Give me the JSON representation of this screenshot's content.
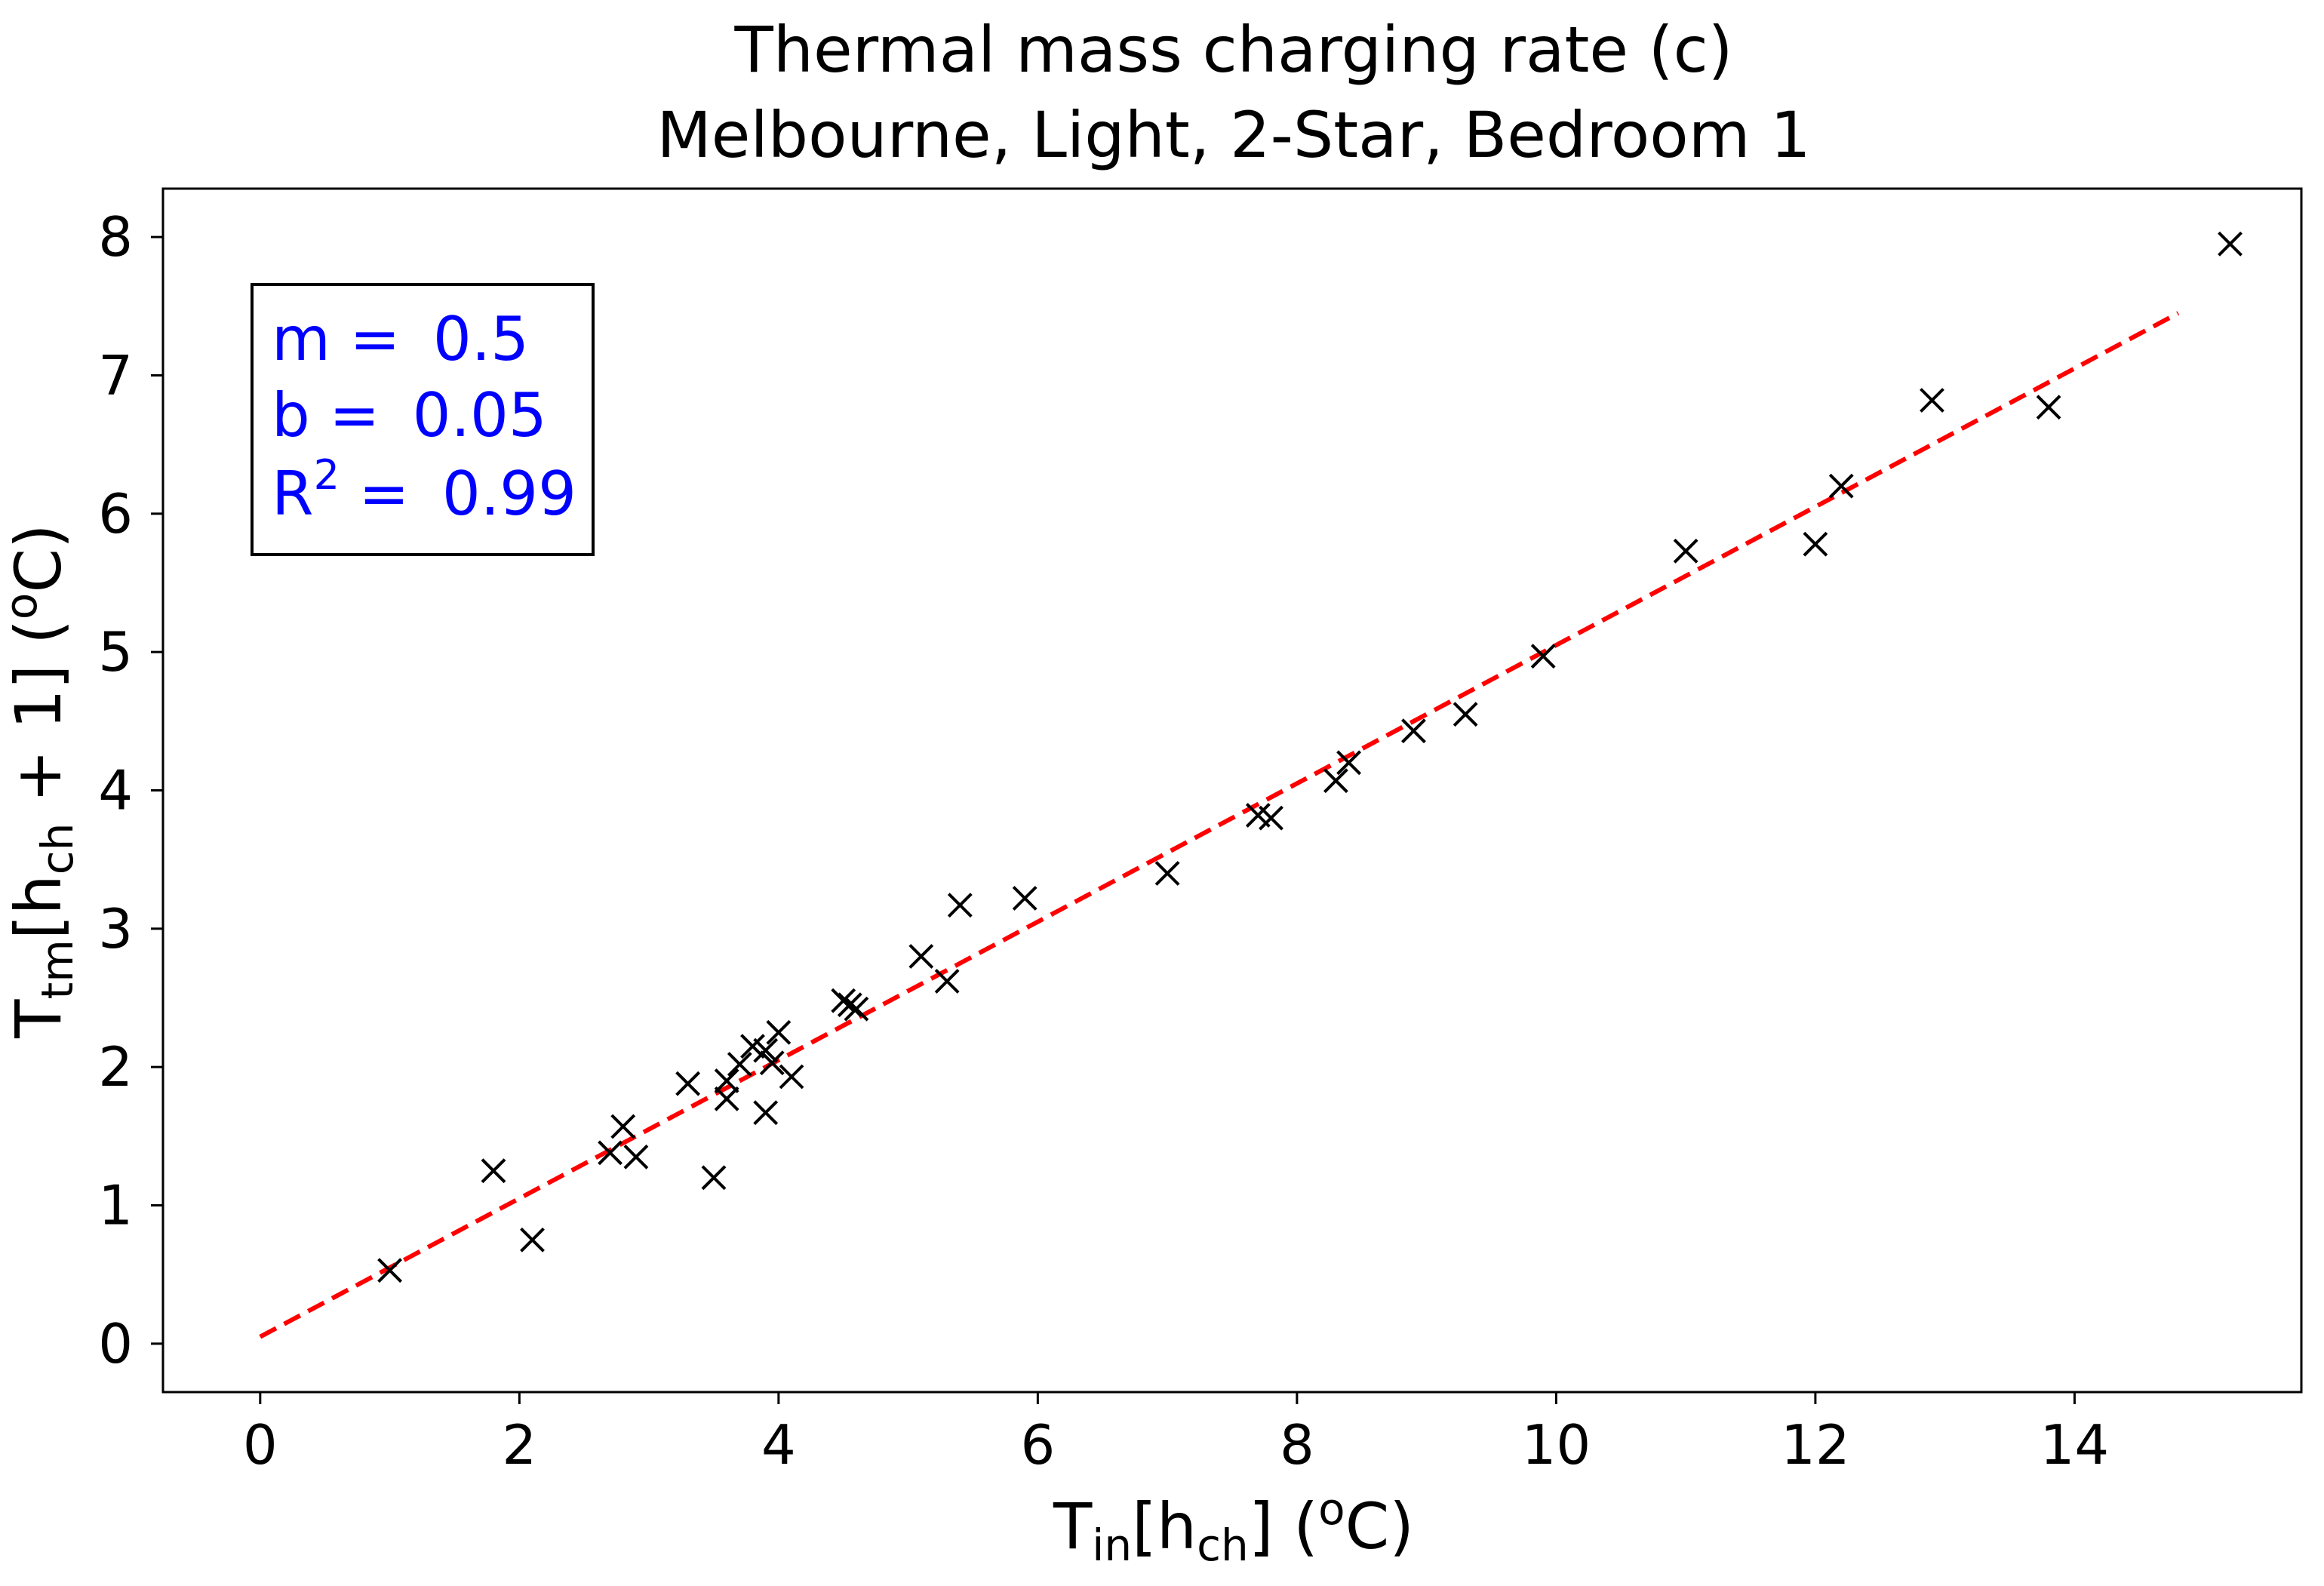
{
  "chart_data": {
    "type": "scatter",
    "title": "Thermal mass charging rate (c)",
    "subtitle": "Melbourne, Light, 2-Star, Bedroom 1",
    "xlabel": {
      "base": "T",
      "sub": "in",
      "mid": "[h",
      "sub2": "ch",
      "end": "] (",
      "sup": "o",
      "tail": "C)"
    },
    "ylabel": {
      "base": "T",
      "sub": "tm",
      "mid": "[h",
      "sub2": "ch",
      "end": " + 1] (",
      "sup": "o",
      "tail": "C)"
    },
    "xlim": [
      -0.75,
      15.75
    ],
    "ylim": [
      -0.35,
      8.35
    ],
    "xticks": [
      0,
      2,
      4,
      6,
      8,
      10,
      12,
      14
    ],
    "yticks": [
      0,
      1,
      2,
      3,
      4,
      5,
      6,
      7,
      8
    ],
    "grid": false,
    "marker": "x",
    "marker_color": "#000000",
    "fit_line": {
      "x": [
        0,
        14.8
      ],
      "slope": 0.5,
      "intercept": 0.05,
      "color": "#ff0000",
      "style": "dashed"
    },
    "annotation": {
      "m_label": "m = ",
      "m_value": "0.5",
      "b_label": "b = ",
      "b_value": "0.05",
      "r2_base": "R",
      "r2_sup": "2",
      "r2_eq": " = ",
      "r2_value": "0.99",
      "color": "#0000ff",
      "placement": "top-left"
    },
    "points": [
      [
        1.0,
        0.53
      ],
      [
        1.8,
        1.25
      ],
      [
        2.1,
        0.75
      ],
      [
        2.7,
        1.38
      ],
      [
        2.8,
        1.57
      ],
      [
        2.9,
        1.35
      ],
      [
        3.3,
        1.88
      ],
      [
        3.5,
        1.2
      ],
      [
        3.6,
        1.9
      ],
      [
        3.6,
        1.77
      ],
      [
        3.7,
        2.02
      ],
      [
        3.8,
        2.15
      ],
      [
        3.9,
        2.12
      ],
      [
        3.9,
        1.67
      ],
      [
        3.95,
        2.03
      ],
      [
        4.0,
        2.25
      ],
      [
        4.1,
        1.93
      ],
      [
        4.5,
        2.48
      ],
      [
        4.55,
        2.45
      ],
      [
        4.6,
        2.42
      ],
      [
        5.1,
        2.8
      ],
      [
        5.3,
        2.62
      ],
      [
        5.4,
        3.17
      ],
      [
        5.9,
        3.22
      ],
      [
        7.0,
        3.4
      ],
      [
        7.7,
        3.82
      ],
      [
        7.8,
        3.8
      ],
      [
        8.3,
        4.07
      ],
      [
        8.4,
        4.2
      ],
      [
        8.9,
        4.43
      ],
      [
        9.3,
        4.55
      ],
      [
        9.9,
        4.97
      ],
      [
        11.0,
        5.73
      ],
      [
        12.0,
        5.78
      ],
      [
        12.2,
        6.2
      ],
      [
        12.9,
        6.82
      ],
      [
        13.8,
        6.77
      ],
      [
        15.2,
        7.95
      ]
    ]
  }
}
